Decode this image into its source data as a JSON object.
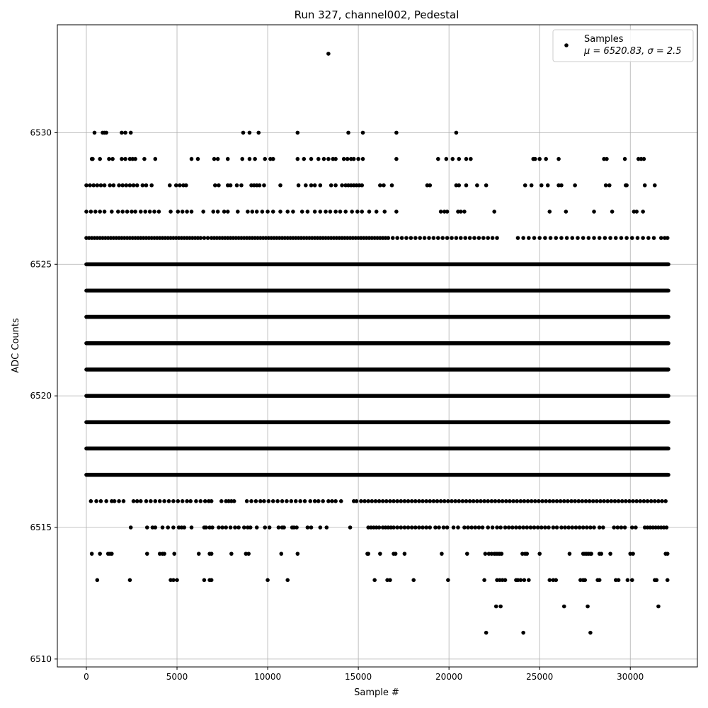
{
  "chart_data": {
    "type": "scatter",
    "title": "Run 327, channel002, Pedestal",
    "xlabel": "Sample #",
    "ylabel": "ADC Counts",
    "xlim": [
      -1600,
      33700
    ],
    "ylim": [
      6509.7,
      6534.1
    ],
    "xticks": [
      0,
      5000,
      10000,
      15000,
      20000,
      25000,
      30000
    ],
    "xtick_labels": [
      "0",
      "5000",
      "10000",
      "15000",
      "20000",
      "25000",
      "30000"
    ],
    "yticks": [
      6510,
      6515,
      6520,
      6525,
      6530
    ],
    "ytick_labels": [
      "6510",
      "6515",
      "6520",
      "6525",
      "6530"
    ],
    "grid": true,
    "legend_position": "top-right",
    "marker_color": "#000000",
    "series": [
      {
        "name": "Samples",
        "legend_stats": "μ = 6520.83, σ = 2.5",
        "x_range": [
          0,
          32100
        ],
        "levels": [
          {
            "y": 6511,
            "x": [
              22050,
              24100,
              27800
            ]
          },
          {
            "y": 6512,
            "x": [
              22600,
              22850,
              26350,
              27650,
              31550
            ]
          },
          {
            "y": 6513,
            "x": [
              600,
              2400,
              4650,
              4800,
              5000,
              6500,
              6800,
              6900,
              10000,
              11100,
              15900,
              16600,
              16750,
              18050,
              19950,
              21950,
              22650,
              22800,
              22950,
              23100,
              23700,
              23800,
              23950,
              24150,
              24400,
              25550,
              25750,
              25900,
              27250,
              27400,
              27500,
              28200,
              28300,
              29200,
              29350,
              29850,
              30100,
              31350,
              31450,
              32050
            ]
          },
          {
            "y": 6514,
            "x": [
              300,
              750,
              1200,
              1300,
              1400,
              3350,
              4050,
              4200,
              4300,
              4850,
              6200,
              6800,
              6900,
              8000,
              8800,
              8950,
              10750,
              11650,
              15500,
              15550,
              16200,
              16950,
              17050,
              17550,
              19600,
              21000,
              22000,
              22200,
              22350,
              22500,
              22600,
              22700,
              22800,
              22900,
              24050,
              24200,
              24300,
              25000,
              26650,
              27400,
              27500,
              27600,
              27700,
              27800,
              27850,
              28300,
              28400,
              28900,
              30000,
              30150,
              31950,
              32050
            ]
          },
          {
            "y": 6515,
            "x": [
              2450,
              3350,
              3650,
              3800,
              4200,
              4500,
              4800,
              5100,
              5250,
              5400,
              5800,
              6500,
              6600,
              6800,
              6950,
              7300,
              7500,
              7700,
              7950,
              8200,
              8400,
              8700,
              8900,
              9050,
              9400,
              9850,
              10100,
              10600,
              10800,
              10900,
              11350,
              11450,
              11600,
              12200,
              12400,
              12900,
              13250,
              14550,
              15550,
              15700,
              15850,
              16000,
              16150,
              16350,
              16500,
              16650,
              16800,
              16950,
              17150,
              17350,
              17550,
              17750,
              17950,
              18150,
              18350,
              18550,
              18750,
              18950,
              19250,
              19450,
              19700,
              19900,
              20250,
              20500,
              20850,
              21050,
              21250,
              21450,
              21650,
              21850,
              22150,
              22400,
              22650,
              22850,
              23100,
              23300,
              23500,
              23700,
              23900,
              24100,
              24300,
              24500,
              24700,
              24900,
              25100,
              25300,
              25500,
              25750,
              25950,
              26200,
              26400,
              26600,
              26800,
              27000,
              27200,
              27400,
              27600,
              27800,
              28000,
              28300,
              28500,
              29100,
              29300,
              29500,
              29700,
              30100,
              30300,
              30800,
              30950,
              31100,
              31250,
              31400,
              31550,
              31700,
              31850,
              32000
            ]
          },
          {
            "y": 6516,
            "x": [
              250,
              550,
              800,
              1100,
              1400,
              1550,
              1800,
              2050,
              2600,
              2800,
              3000,
              3300,
              3550,
              3800,
              4050,
              4300,
              4550,
              4800,
              5050,
              5300,
              5550,
              5750,
              6050,
              6300,
              6550,
              6750,
              6900,
              7450,
              7700,
              7850,
              8000,
              8150,
              8850,
              9100,
              9350,
              9600,
              9800,
              10050,
              10300,
              10550,
              10800,
              11050,
              11300,
              11550,
              11800,
              12050,
              12350,
              12600,
              12800,
              13050,
              13350,
              13550,
              13750,
              14050,
              14750,
              14900,
              15150,
              15350,
              15550,
              15750,
              15950,
              16150,
              16350,
              16550,
              16750,
              16950,
              17150,
              17350,
              17550,
              17750,
              17950,
              18150,
              18350,
              18550,
              18750,
              18950,
              19150,
              19350,
              19550,
              19750,
              19950,
              20150,
              20350,
              20550,
              20750,
              20950,
              21150,
              21350,
              21550,
              21750,
              21950,
              22150,
              22350,
              22550,
              22750,
              22950,
              23150,
              23350,
              23550,
              23750,
              23950,
              24150,
              24350,
              24550,
              24750,
              24950,
              25150,
              25350,
              25550,
              25750,
              25950,
              26150,
              26350,
              26550,
              26750,
              26950,
              27150,
              27350,
              27550,
              27750,
              27950,
              28150,
              28350,
              28550,
              28750,
              28950,
              29150,
              29350,
              29550,
              29750,
              29950,
              30150,
              30350,
              30550,
              30750,
              30950,
              31150,
              31350,
              31550,
              31750,
              31950
            ]
          },
          {
            "y": 6526,
            "x": [
              0,
              150,
              300,
              450,
              600,
              750,
              900,
              1050,
              1200,
              1350,
              1500,
              1650,
              1800,
              1950,
              2100,
              2250,
              2400,
              2550,
              2700,
              2850,
              3000,
              3150,
              3300,
              3450,
              3600,
              3750,
              3900,
              4050,
              4200,
              4350,
              4500,
              4650,
              4800,
              4950,
              5100,
              5250,
              5400,
              5550,
              5700,
              5850,
              6000,
              6150,
              6300,
              6500,
              6700,
              6900,
              7050,
              7200,
              7350,
              7500,
              7650,
              7800,
              7950,
              8100,
              8250,
              8400,
              8550,
              8700,
              8850,
              9000,
              9150,
              9300,
              9450,
              9600,
              9750,
              9900,
              10050,
              10200,
              10350,
              10500,
              10650,
              10800,
              10950,
              11100,
              11250,
              11400,
              11550,
              11700,
              11850,
              12000,
              12150,
              12300,
              12450,
              12600,
              12750,
              12900,
              13050,
              13200,
              13350,
              13500,
              13650,
              13800,
              13950,
              14100,
              14250,
              14400,
              14550,
              14700,
              14850,
              15000,
              15150,
              15300,
              15450,
              15600,
              15750,
              15900,
              16050,
              16200,
              16350,
              16500,
              16650,
              16900,
              17150,
              17400,
              17650,
              17900,
              18150,
              18400,
              18650,
              18900,
              19150,
              19400,
              19650,
              19900,
              20150,
              20400,
              20650,
              20900,
              21150,
              21400,
              21650,
              21900,
              22150,
              22400,
              22650,
              23800,
              24100,
              24400,
              24700,
              25000,
              25300,
              25600,
              25900,
              26200,
              26500,
              26800,
              27100,
              27400,
              27700,
              28000,
              28300,
              28600,
              28900,
              29200,
              29500,
              29800,
              30100,
              30400,
              30700,
              31000,
              31300,
              31700,
              31900,
              32050
            ]
          },
          {
            "y": 6527,
            "x": [
              0,
              250,
              500,
              750,
              1000,
              1400,
              1750,
              2000,
              2250,
              2500,
              2700,
              3000,
              3250,
              3500,
              3750,
              4000,
              4650,
              5050,
              5300,
              5550,
              5800,
              6450,
              7000,
              7250,
              7600,
              7800,
              8350,
              8900,
              9150,
              9400,
              9700,
              10000,
              10300,
              10700,
              11100,
              11400,
              11900,
              12200,
              12600,
              12900,
              13200,
              13450,
              13750,
              14000,
              14300,
              14650,
              14950,
              15200,
              15600,
              16000,
              16450,
              17100,
              19550,
              19750,
              19900,
              20500,
              20650,
              20850,
              22500,
              25550,
              26450,
              28000,
              29000,
              30200,
              30350,
              30700
            ]
          },
          {
            "y": 6528,
            "x": [
              0,
              200,
              400,
              600,
              800,
              1000,
              1300,
              1500,
              1800,
              2000,
              2200,
              2400,
              2600,
              2800,
              3100,
              3300,
              3600,
              4600,
              4950,
              5150,
              5350,
              5500,
              7100,
              7300,
              7800,
              7950,
              8300,
              8550,
              9100,
              9250,
              9400,
              9550,
              9800,
              10700,
              11700,
              12100,
              12400,
              12600,
              12900,
              13500,
              13750,
              14100,
              14300,
              14450,
              14600,
              14750,
              14900,
              15050,
              15200,
              16200,
              16400,
              16850,
              18800,
              18950,
              20400,
              20550,
              20950,
              21550,
              22050,
              24200,
              24550,
              25100,
              25450,
              26050,
              26200,
              26950,
              28650,
              28850,
              29750,
              29800,
              30800,
              31350
            ]
          },
          {
            "y": 6529,
            "x": [
              300,
              350,
              750,
              1250,
              1450,
              1950,
              2150,
              2400,
              2550,
              2700,
              3200,
              3800,
              5800,
              6150,
              7050,
              7250,
              7800,
              8600,
              9000,
              9300,
              9850,
              10150,
              10300,
              11650,
              12000,
              12400,
              12800,
              13100,
              13350,
              13600,
              13750,
              14200,
              14400,
              14600,
              14750,
              15000,
              15250,
              17100,
              19400,
              19850,
              20200,
              20550,
              20950,
              21200,
              24650,
              24750,
              25000,
              25350,
              26050,
              28550,
              28700,
              29700,
              30450,
              30600,
              30750
            ]
          },
          {
            "y": 6530,
            "x": [
              450,
              900,
              1000,
              1100,
              1950,
              2150,
              2450,
              8650,
              9000,
              9500,
              11650,
              14450,
              15250,
              17100,
              20400
            ]
          },
          {
            "y": 6533,
            "x": [
              13350
            ]
          },
          {
            "y": 6525,
            "band": true
          },
          {
            "y": 6524,
            "band": true
          },
          {
            "y": 6523,
            "band": true
          },
          {
            "y": 6522,
            "band": true
          },
          {
            "y": 6521,
            "band": true
          },
          {
            "y": 6520,
            "band": true
          },
          {
            "y": 6519,
            "band": true
          },
          {
            "y": 6518,
            "band": true
          },
          {
            "y": 6517,
            "band": true
          }
        ]
      }
    ]
  }
}
